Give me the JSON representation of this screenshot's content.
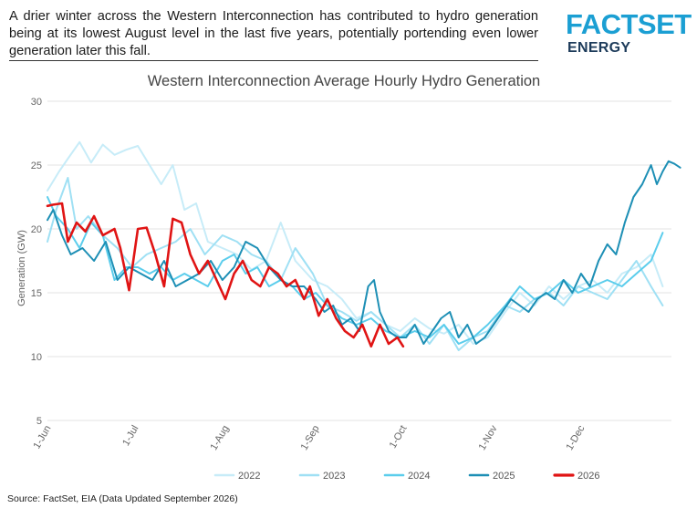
{
  "headline": "A drier winter across the Western Interconnection has contributed to hydro generation being at its lowest August level in the last five years, potentially portending even lower generation later this fall.",
  "logo": {
    "main": "FACTSET",
    "sub": "ENERGY"
  },
  "source": "Source: FactSet, EIA (Data Updated September 2026)",
  "colors": {
    "brand": "#1b9fd3",
    "brand_dark": "#1d3b5a"
  },
  "chart_data": {
    "type": "line",
    "title": "Western Interconnection Average Hourly Hydro Generation",
    "ylabel": "Generation (GW)",
    "xlabel": "",
    "x_type": "date",
    "xlim": [
      "06-01",
      "12-31"
    ],
    "ylim": [
      5,
      30
    ],
    "yticks": [
      5,
      10,
      15,
      20,
      25,
      30
    ],
    "xticks": [
      {
        "date": "06-01",
        "label": "1-Jun"
      },
      {
        "date": "07-01",
        "label": "1-Jul"
      },
      {
        "date": "08-01",
        "label": "1-Aug"
      },
      {
        "date": "09-01",
        "label": "1-Sep"
      },
      {
        "date": "10-01",
        "label": "1-Oct"
      },
      {
        "date": "11-01",
        "label": "1-Nov"
      },
      {
        "date": "12-01",
        "label": "1-Dec"
      }
    ],
    "grid": true,
    "legend_position": "bottom",
    "series": [
      {
        "name": "2022",
        "color": "#c7ecf8",
        "width": 2,
        "points": [
          [
            "06-01",
            23.0
          ],
          [
            "06-05",
            24.5
          ],
          [
            "06-08",
            25.5
          ],
          [
            "06-12",
            26.8
          ],
          [
            "06-16",
            25.2
          ],
          [
            "06-20",
            26.6
          ],
          [
            "06-24",
            25.8
          ],
          [
            "06-28",
            26.2
          ],
          [
            "07-02",
            26.5
          ],
          [
            "07-06",
            25.0
          ],
          [
            "07-10",
            23.5
          ],
          [
            "07-14",
            25.0
          ],
          [
            "07-18",
            21.5
          ],
          [
            "07-22",
            22.0
          ],
          [
            "07-26",
            19.0
          ],
          [
            "07-31",
            18.5
          ],
          [
            "08-05",
            18.0
          ],
          [
            "08-10",
            16.8
          ],
          [
            "08-15",
            17.5
          ],
          [
            "08-20",
            20.5
          ],
          [
            "08-25",
            17.5
          ],
          [
            "08-31",
            16.0
          ],
          [
            "09-05",
            15.5
          ],
          [
            "09-10",
            14.5
          ],
          [
            "09-15",
            13.0
          ],
          [
            "09-20",
            13.5
          ],
          [
            "09-25",
            12.5
          ],
          [
            "09-30",
            12.0
          ],
          [
            "10-05",
            13.0
          ],
          [
            "10-10",
            12.2
          ],
          [
            "10-15",
            11.8
          ],
          [
            "10-20",
            12.5
          ],
          [
            "10-25",
            11.0
          ],
          [
            "10-30",
            11.5
          ],
          [
            "11-05",
            13.5
          ],
          [
            "11-10",
            15.0
          ],
          [
            "11-15",
            14.0
          ],
          [
            "11-20",
            15.5
          ],
          [
            "11-25",
            14.5
          ],
          [
            "11-30",
            15.5
          ],
          [
            "12-05",
            16.0
          ],
          [
            "12-10",
            15.0
          ],
          [
            "12-15",
            16.5
          ],
          [
            "12-20",
            17.0
          ],
          [
            "12-25",
            18.0
          ],
          [
            "12-29",
            15.5
          ]
        ]
      },
      {
        "name": "2023",
        "color": "#9fe0f4",
        "width": 2,
        "points": [
          [
            "06-01",
            19.0
          ],
          [
            "06-04",
            21.5
          ],
          [
            "06-08",
            24.0
          ],
          [
            "06-11",
            20.0
          ],
          [
            "06-15",
            21.0
          ],
          [
            "06-20",
            19.5
          ],
          [
            "06-25",
            18.5
          ],
          [
            "06-30",
            17.0
          ],
          [
            "07-05",
            18.0
          ],
          [
            "07-10",
            18.5
          ],
          [
            "07-15",
            19.0
          ],
          [
            "07-20",
            20.0
          ],
          [
            "07-25",
            18.0
          ],
          [
            "07-31",
            19.5
          ],
          [
            "08-05",
            19.0
          ],
          [
            "08-10",
            18.0
          ],
          [
            "08-15",
            17.5
          ],
          [
            "08-20",
            16.0
          ],
          [
            "08-25",
            18.5
          ],
          [
            "08-31",
            16.5
          ],
          [
            "09-05",
            14.0
          ],
          [
            "09-10",
            13.5
          ],
          [
            "09-15",
            12.8
          ],
          [
            "09-20",
            13.5
          ],
          [
            "09-25",
            12.5
          ],
          [
            "09-30",
            11.5
          ],
          [
            "10-05",
            12.5
          ],
          [
            "10-10",
            11.0
          ],
          [
            "10-15",
            12.5
          ],
          [
            "10-20",
            10.5
          ],
          [
            "10-25",
            11.5
          ],
          [
            "10-30",
            12.0
          ],
          [
            "11-05",
            14.0
          ],
          [
            "11-10",
            13.5
          ],
          [
            "11-15",
            14.5
          ],
          [
            "11-20",
            15.0
          ],
          [
            "11-25",
            14.0
          ],
          [
            "11-30",
            15.5
          ],
          [
            "12-05",
            15.0
          ],
          [
            "12-10",
            14.5
          ],
          [
            "12-15",
            16.0
          ],
          [
            "12-20",
            17.5
          ],
          [
            "12-25",
            15.5
          ],
          [
            "12-29",
            14.0
          ]
        ]
      },
      {
        "name": "2024",
        "color": "#5bcdec",
        "width": 2,
        "points": [
          [
            "06-01",
            22.5
          ],
          [
            "06-04",
            21.0
          ],
          [
            "06-08",
            20.0
          ],
          [
            "06-12",
            18.5
          ],
          [
            "06-16",
            20.5
          ],
          [
            "06-20",
            19.5
          ],
          [
            "06-24",
            16.0
          ],
          [
            "06-28",
            17.0
          ],
          [
            "07-02",
            17.0
          ],
          [
            "07-06",
            16.5
          ],
          [
            "07-10",
            17.0
          ],
          [
            "07-14",
            16.0
          ],
          [
            "07-18",
            16.5
          ],
          [
            "07-22",
            16.0
          ],
          [
            "07-26",
            15.5
          ],
          [
            "07-31",
            17.5
          ],
          [
            "08-04",
            18.0
          ],
          [
            "08-08",
            16.5
          ],
          [
            "08-12",
            17.0
          ],
          [
            "08-16",
            15.5
          ],
          [
            "08-20",
            16.0
          ],
          [
            "08-24",
            15.5
          ],
          [
            "08-28",
            14.5
          ],
          [
            "09-01",
            15.0
          ],
          [
            "09-05",
            14.0
          ],
          [
            "09-10",
            13.0
          ],
          [
            "09-15",
            12.5
          ],
          [
            "09-20",
            13.0
          ],
          [
            "09-25",
            12.0
          ],
          [
            "09-30",
            11.5
          ],
          [
            "10-05",
            12.0
          ],
          [
            "10-10",
            11.5
          ],
          [
            "10-15",
            12.5
          ],
          [
            "10-20",
            11.0
          ],
          [
            "10-25",
            11.5
          ],
          [
            "10-30",
            12.5
          ],
          [
            "11-05",
            14.0
          ],
          [
            "11-10",
            15.5
          ],
          [
            "11-15",
            14.5
          ],
          [
            "11-20",
            15.0
          ],
          [
            "11-25",
            16.0
          ],
          [
            "11-30",
            15.0
          ],
          [
            "12-05",
            15.5
          ],
          [
            "12-10",
            16.0
          ],
          [
            "12-15",
            15.5
          ],
          [
            "12-20",
            16.5
          ],
          [
            "12-25",
            17.5
          ],
          [
            "12-29",
            19.7
          ]
        ]
      },
      {
        "name": "2025",
        "color": "#1d8fb5",
        "width": 2,
        "points": [
          [
            "06-01",
            20.7
          ],
          [
            "06-03",
            21.5
          ],
          [
            "06-06",
            19.5
          ],
          [
            "06-09",
            18.0
          ],
          [
            "06-13",
            18.5
          ],
          [
            "06-17",
            17.5
          ],
          [
            "06-21",
            19.0
          ],
          [
            "06-25",
            16.0
          ],
          [
            "06-29",
            17.0
          ],
          [
            "07-03",
            16.5
          ],
          [
            "07-07",
            16.0
          ],
          [
            "07-11",
            17.5
          ],
          [
            "07-15",
            15.5
          ],
          [
            "07-19",
            16.0
          ],
          [
            "07-23",
            16.5
          ],
          [
            "07-27",
            17.5
          ],
          [
            "07-31",
            16.0
          ],
          [
            "08-04",
            17.0
          ],
          [
            "08-08",
            19.0
          ],
          [
            "08-12",
            18.5
          ],
          [
            "08-16",
            17.0
          ],
          [
            "08-20",
            16.0
          ],
          [
            "08-24",
            15.5
          ],
          [
            "08-28",
            15.5
          ],
          [
            "09-01",
            14.5
          ],
          [
            "09-04",
            13.5
          ],
          [
            "09-07",
            14.0
          ],
          [
            "09-10",
            12.5
          ],
          [
            "09-13",
            13.0
          ],
          [
            "09-16",
            12.0
          ],
          [
            "09-19",
            15.5
          ],
          [
            "09-21",
            16.0
          ],
          [
            "09-23",
            13.5
          ],
          [
            "09-26",
            12.0
          ],
          [
            "09-29",
            11.5
          ],
          [
            "10-02",
            11.5
          ],
          [
            "10-05",
            12.5
          ],
          [
            "10-08",
            11.0
          ],
          [
            "10-11",
            12.0
          ],
          [
            "10-14",
            13.0
          ],
          [
            "10-17",
            13.5
          ],
          [
            "10-20",
            11.5
          ],
          [
            "10-23",
            12.5
          ],
          [
            "10-26",
            11.0
          ],
          [
            "10-29",
            11.5
          ],
          [
            "11-01",
            12.5
          ],
          [
            "11-04",
            13.5
          ],
          [
            "11-07",
            14.5
          ],
          [
            "11-10",
            14.0
          ],
          [
            "11-13",
            13.5
          ],
          [
            "11-16",
            14.5
          ],
          [
            "11-19",
            15.0
          ],
          [
            "11-22",
            14.5
          ],
          [
            "11-25",
            16.0
          ],
          [
            "11-28",
            15.0
          ],
          [
            "12-01",
            16.5
          ],
          [
            "12-04",
            15.5
          ],
          [
            "12-07",
            17.5
          ],
          [
            "12-10",
            18.8
          ],
          [
            "12-13",
            18.0
          ],
          [
            "12-16",
            20.5
          ],
          [
            "12-19",
            22.5
          ],
          [
            "12-22",
            23.5
          ],
          [
            "12-25",
            25.0
          ],
          [
            "12-27",
            23.5
          ],
          [
            "12-29",
            24.5
          ],
          [
            "12-31",
            25.3
          ],
          [
            "12-33",
            25.1
          ],
          [
            "12-35",
            24.8
          ]
        ]
      },
      {
        "name": "2026",
        "color": "#e01414",
        "width": 2.6,
        "points": [
          [
            "06-01",
            21.8
          ],
          [
            "06-03",
            21.9
          ],
          [
            "06-06",
            22.0
          ],
          [
            "06-08",
            19.0
          ],
          [
            "06-11",
            20.5
          ],
          [
            "06-14",
            19.8
          ],
          [
            "06-17",
            21.0
          ],
          [
            "06-20",
            19.5
          ],
          [
            "06-24",
            20.0
          ],
          [
            "06-26",
            18.5
          ],
          [
            "06-29",
            15.2
          ],
          [
            "07-02",
            20.0
          ],
          [
            "07-05",
            20.1
          ],
          [
            "07-08",
            18.0
          ],
          [
            "07-11",
            15.5
          ],
          [
            "07-14",
            20.8
          ],
          [
            "07-17",
            20.5
          ],
          [
            "07-20",
            18.0
          ],
          [
            "07-23",
            16.5
          ],
          [
            "07-26",
            17.5
          ],
          [
            "07-29",
            16.0
          ],
          [
            "08-01",
            14.5
          ],
          [
            "08-04",
            16.5
          ],
          [
            "08-07",
            17.5
          ],
          [
            "08-10",
            16.0
          ],
          [
            "08-13",
            15.5
          ],
          [
            "08-16",
            17.0
          ],
          [
            "08-19",
            16.5
          ],
          [
            "08-22",
            15.5
          ],
          [
            "08-25",
            16.0
          ],
          [
            "08-28",
            14.5
          ],
          [
            "08-30",
            15.5
          ],
          [
            "09-02",
            13.2
          ],
          [
            "09-05",
            14.5
          ],
          [
            "09-08",
            13.0
          ],
          [
            "09-11",
            12.0
          ],
          [
            "09-14",
            11.5
          ],
          [
            "09-17",
            12.5
          ],
          [
            "09-20",
            10.8
          ],
          [
            "09-23",
            12.5
          ],
          [
            "09-26",
            11.0
          ],
          [
            "09-29",
            11.5
          ],
          [
            "10-01",
            10.8
          ]
        ]
      }
    ]
  }
}
